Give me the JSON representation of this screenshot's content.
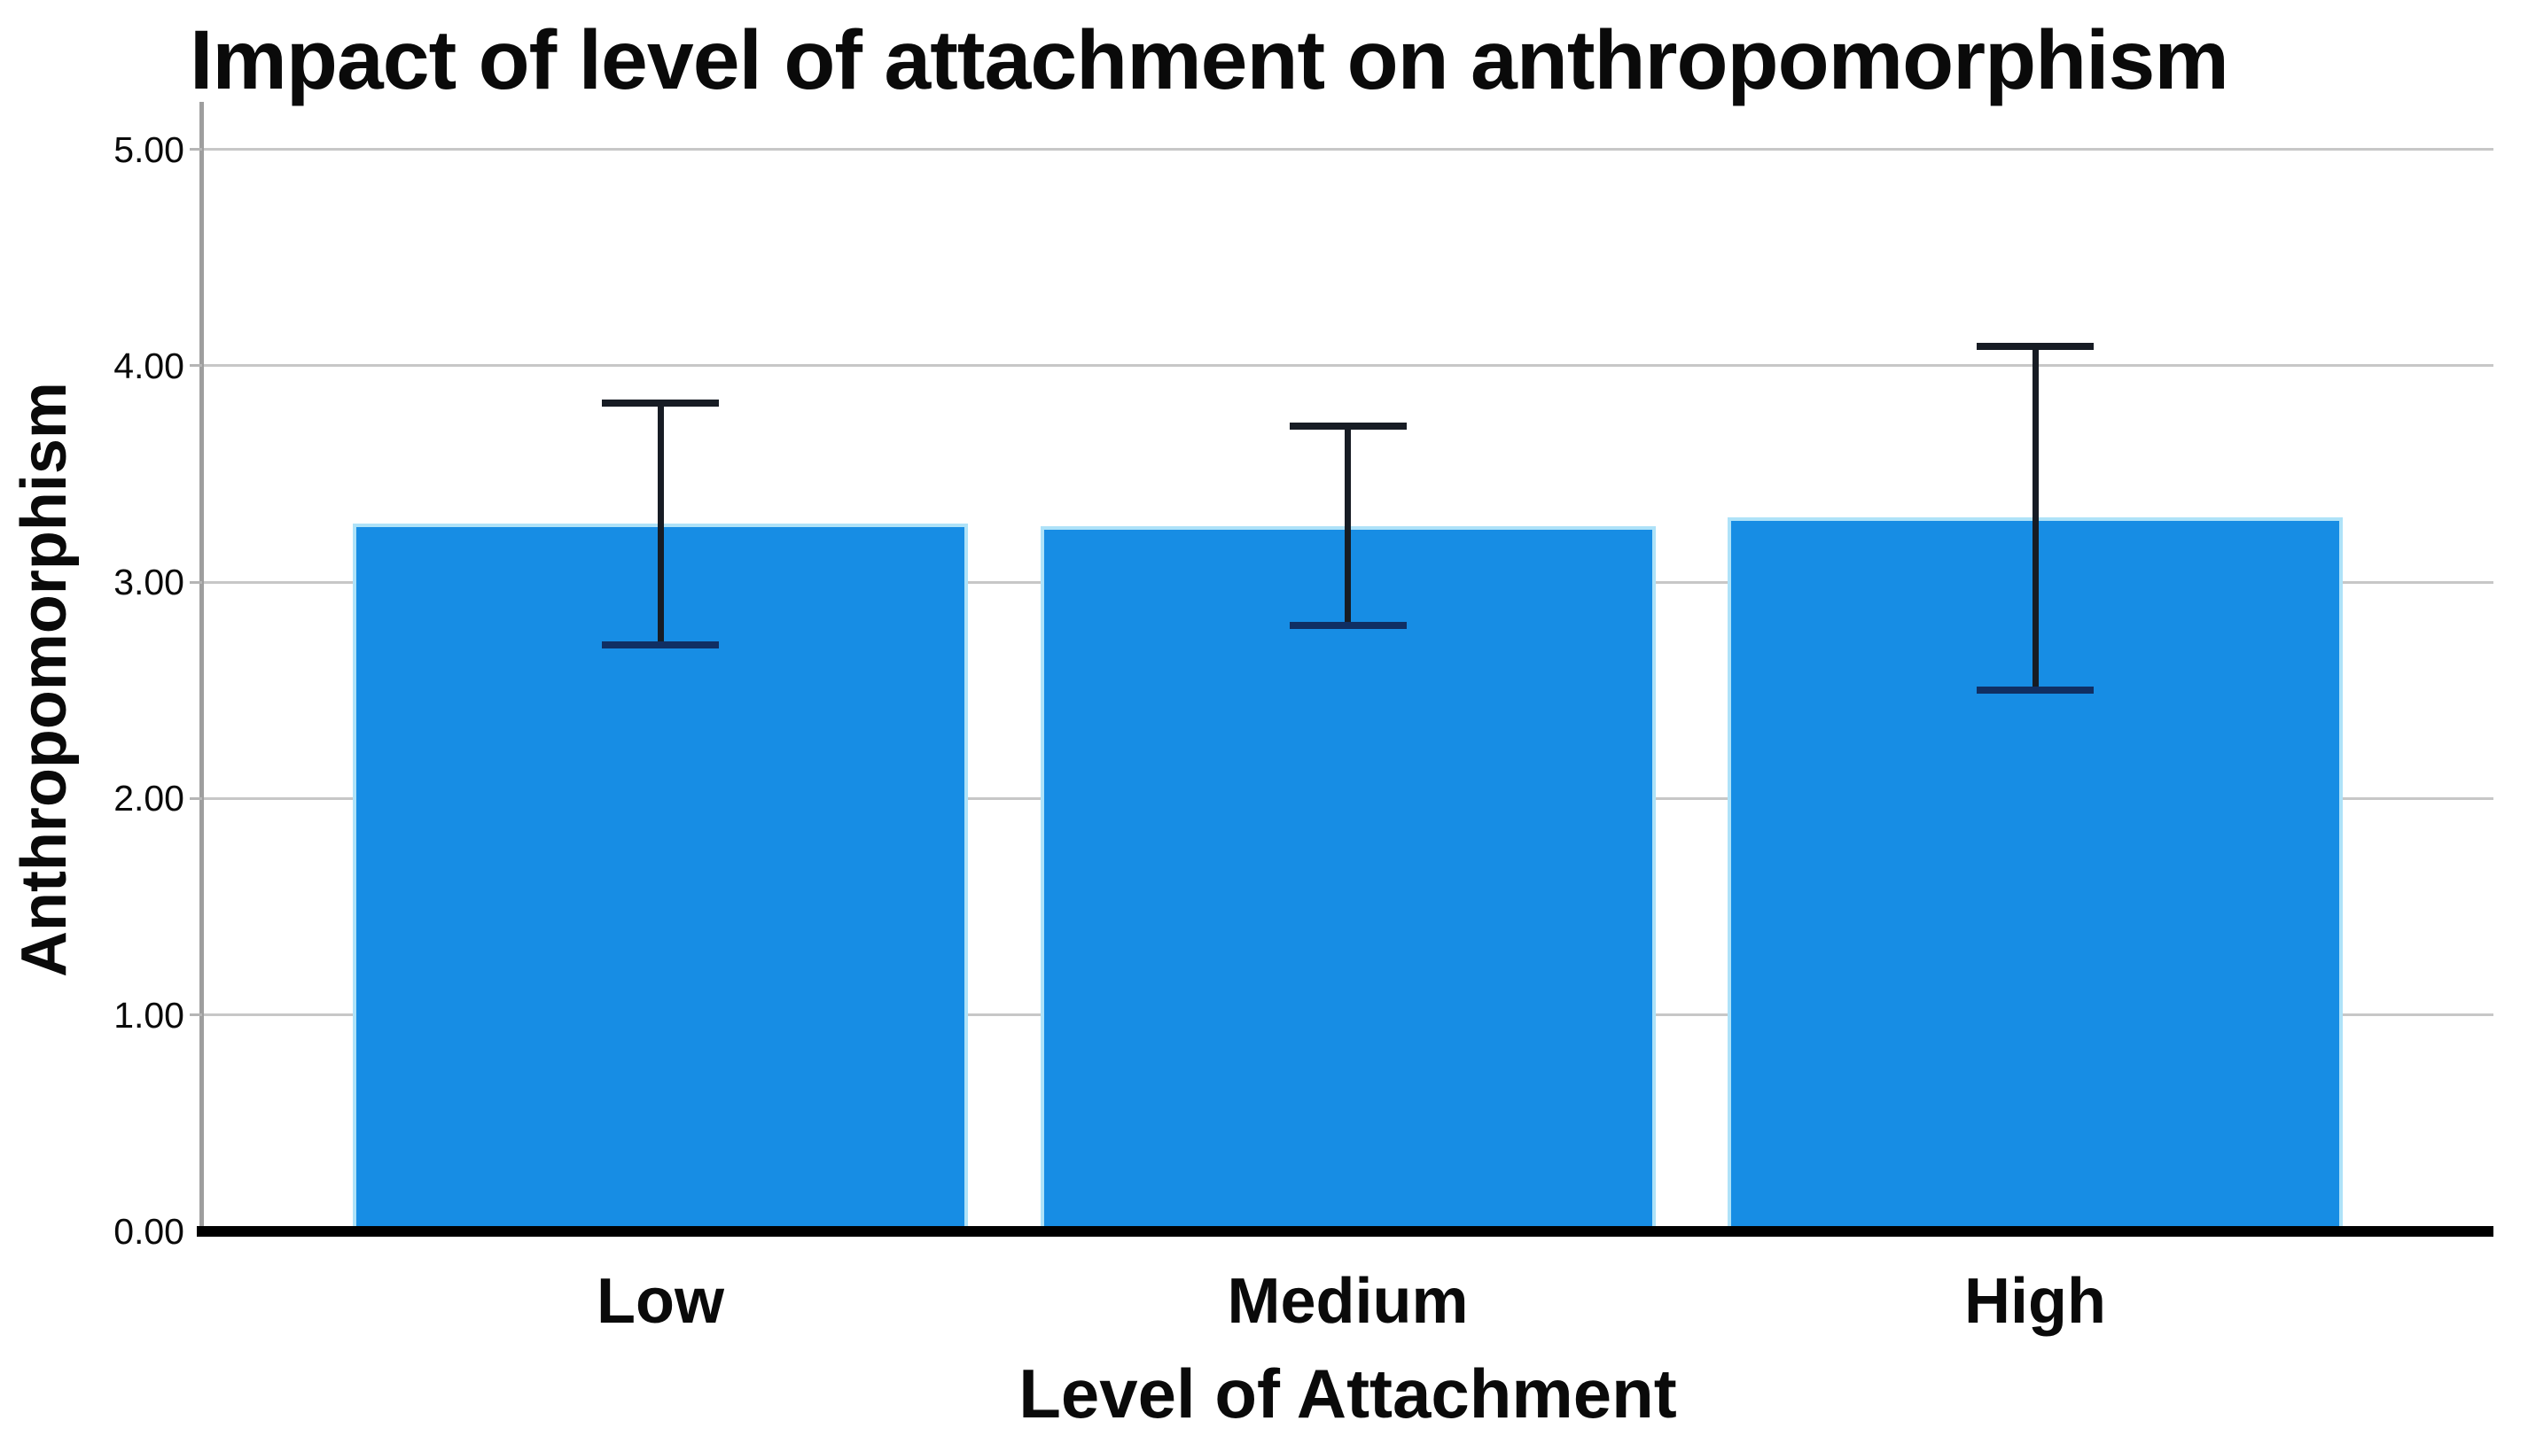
{
  "chart_data": {
    "type": "bar",
    "title": "Impact of level of attachment on anthropomorphism",
    "xlabel": "Level of Attachment",
    "ylabel": "Anthropomorphism",
    "categories": [
      "Low",
      "Medium",
      "High"
    ],
    "values": [
      3.27,
      3.26,
      3.3
    ],
    "error_bars": {
      "low": [
        2.71,
        2.8,
        2.5
      ],
      "high": [
        3.83,
        3.72,
        4.09
      ]
    },
    "yticks": [
      0,
      1,
      2,
      3,
      4,
      5
    ],
    "ytick_labels": [
      "0.00",
      "1.00",
      "2.00",
      "3.00",
      "4.00",
      "5.00"
    ],
    "ylim": [
      0,
      5.22
    ],
    "grid": true,
    "legend_position": "none",
    "bar_color": "#178DE4",
    "bar_edge_color": "#AEE2F8",
    "gridline_color": "#C7C7C7",
    "axis_line_color": "#9E9E9E",
    "baseline_color": "#000000",
    "error_bar_color": "#171C24"
  }
}
